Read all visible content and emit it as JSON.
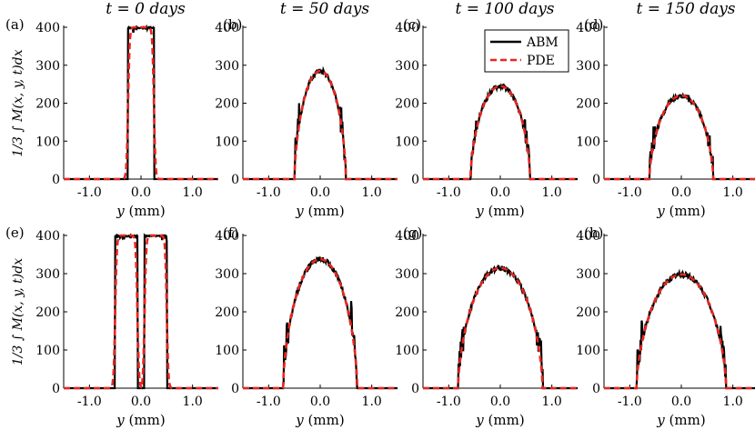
{
  "figure": {
    "column_titles": [
      "t = 0 days",
      "t = 50 days",
      "t = 100 days",
      "t = 150 days"
    ],
    "panel_labels": [
      "(a)",
      "(b)",
      "(c)",
      "(d)",
      "(e)",
      "(f)",
      "(g)",
      "(h)"
    ],
    "ylabel": "1/3 ∫ M(x, y, t)dx",
    "xlabel": "y (mm)",
    "legend": {
      "abm_label": "ABM",
      "pde_label": "PDE",
      "abm_color": "#000000",
      "pde_color": "#e8261f"
    }
  },
  "chart_data": {
    "type": "line",
    "xlim": [
      -1.5,
      1.5
    ],
    "ylim": [
      0,
      400
    ],
    "xticks": [
      -1.0,
      0.0,
      1.0
    ],
    "xtick_labels": [
      "-1.0",
      "0.0",
      "1.0"
    ],
    "yticks": [
      0,
      100,
      200,
      300,
      400
    ],
    "ytick_labels": [
      "0",
      "100",
      "200",
      "300",
      "400"
    ],
    "xlabel": "y (mm)",
    "ylabel": "1/3 ∫ M(x, y, t)dx",
    "series_names": [
      "ABM",
      "PDE"
    ],
    "panels": [
      {
        "label": "(a)",
        "title": "t = 0 days",
        "kind": "block",
        "edges": [
          [
            -0.25,
            0.25
          ]
        ],
        "height": 400,
        "abm_notch": 0
      },
      {
        "label": "(b)",
        "title": "t = 50 days",
        "kind": "dome",
        "half_width": 0.5,
        "peak": 285,
        "shoulder": 165
      },
      {
        "label": "(c)",
        "title": "t = 100 days",
        "kind": "dome",
        "half_width": 0.58,
        "peak": 245,
        "shoulder": 125
      },
      {
        "label": "(d)",
        "title": "t = 150 days",
        "kind": "dome",
        "half_width": 0.62,
        "peak": 220,
        "shoulder": 110
      },
      {
        "label": "(e)",
        "title": "t = 0 days",
        "kind": "block",
        "edges": [
          [
            -0.5,
            -0.07
          ],
          [
            0.07,
            0.5
          ]
        ],
        "height": 400,
        "abm_notch": 0
      },
      {
        "label": "(f)",
        "title": "t = 50 days",
        "kind": "dome",
        "half_width": 0.72,
        "peak": 338,
        "shoulder": 170
      },
      {
        "label": "(g)",
        "title": "t = 100 days",
        "kind": "dome",
        "half_width": 0.82,
        "peak": 315,
        "shoulder": 160
      },
      {
        "label": "(h)",
        "title": "t = 150 days",
        "kind": "dome",
        "half_width": 0.87,
        "peak": 298,
        "shoulder": 150
      }
    ]
  }
}
